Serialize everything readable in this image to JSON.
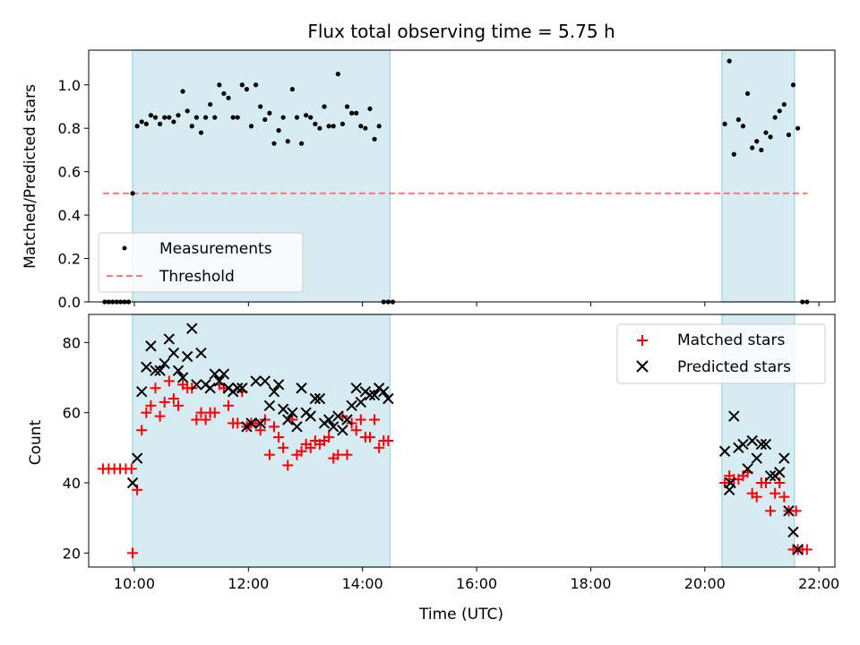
{
  "title": "Flux total observing time = 5.75 h",
  "colors": {
    "band": "#add8e6",
    "matched": "#ff0000",
    "predicted": "#000000",
    "threshold": "#ff7777"
  },
  "chart_data": [
    {
      "type": "scatter",
      "ylabel": "Matched/Predicted stars",
      "xlabel": "",
      "xlim": [
        9.2,
        22.28
      ],
      "ylim": [
        0.0,
        1.16
      ],
      "yticks": [
        0.0,
        0.2,
        0.4,
        0.6,
        0.8,
        1.0
      ],
      "ytick_labels": [
        "0.0",
        "0.2",
        "0.4",
        "0.6",
        "0.8",
        "1.0"
      ],
      "xticks": [
        10,
        12,
        14,
        16,
        18,
        20,
        22
      ],
      "xtick_labels": [],
      "shaded_intervals": [
        [
          9.97,
          14.48
        ],
        [
          20.3,
          21.57
        ]
      ],
      "threshold": {
        "name": "Threshold",
        "value": 0.5,
        "x_range": [
          9.45,
          21.8
        ],
        "style": "dashed"
      },
      "legend": {
        "position": "lower-left",
        "entries": [
          "Measurements",
          "Threshold"
        ]
      },
      "series": [
        {
          "name": "Measurements",
          "marker": "dot",
          "x": [
            9.48,
            9.55,
            9.62,
            9.69,
            9.76,
            9.83,
            9.9,
            9.97,
            10.05,
            10.13,
            10.21,
            10.29,
            10.37,
            10.45,
            10.53,
            10.61,
            10.69,
            10.77,
            10.85,
            10.93,
            11.01,
            11.09,
            11.17,
            11.25,
            11.33,
            11.41,
            11.49,
            11.57,
            11.65,
            11.73,
            11.81,
            11.89,
            11.97,
            12.05,
            12.13,
            12.21,
            12.29,
            12.37,
            12.45,
            12.53,
            12.61,
            12.69,
            12.77,
            12.85,
            12.93,
            13.01,
            13.09,
            13.17,
            13.25,
            13.33,
            13.41,
            13.49,
            13.57,
            13.65,
            13.73,
            13.81,
            13.89,
            13.97,
            14.05,
            14.13,
            14.21,
            14.29,
            14.37,
            14.45,
            14.53,
            20.35,
            20.43,
            20.51,
            20.59,
            20.67,
            20.75,
            20.83,
            20.91,
            20.99,
            21.07,
            21.15,
            21.23,
            21.31,
            21.39,
            21.47,
            21.55,
            21.63,
            21.71,
            21.79
          ],
          "y": [
            0.0,
            0.0,
            0.0,
            0.0,
            0.0,
            0.0,
            0.0,
            0.5,
            0.81,
            0.83,
            0.82,
            0.86,
            0.85,
            0.82,
            0.85,
            0.85,
            0.83,
            0.86,
            0.97,
            0.88,
            0.81,
            0.85,
            0.78,
            0.85,
            0.91,
            0.85,
            1.0,
            0.96,
            0.94,
            0.85,
            0.85,
            1.0,
            0.98,
            0.81,
            1.0,
            0.9,
            0.84,
            0.87,
            0.73,
            0.79,
            0.85,
            0.74,
            0.98,
            0.85,
            0.73,
            0.86,
            0.85,
            0.82,
            0.8,
            0.9,
            0.81,
            0.81,
            1.05,
            0.82,
            0.9,
            0.87,
            0.87,
            0.81,
            0.8,
            0.89,
            0.75,
            0.81,
            0.0,
            0.0,
            0.0,
            0.82,
            1.11,
            0.68,
            0.84,
            0.81,
            0.96,
            0.71,
            0.74,
            0.7,
            0.78,
            0.76,
            0.85,
            0.88,
            0.91,
            0.77,
            1.0,
            0.8,
            0.0,
            0.0
          ]
        }
      ]
    },
    {
      "type": "scatter",
      "ylabel": "Count",
      "xlabel": "Time (UTC)",
      "xlim": [
        9.2,
        22.28
      ],
      "ylim": [
        16,
        88
      ],
      "yticks": [
        20,
        40,
        60,
        80
      ],
      "ytick_labels": [
        "20",
        "40",
        "60",
        "80"
      ],
      "xticks": [
        10,
        12,
        14,
        16,
        18,
        20,
        22
      ],
      "xtick_labels": [
        "10:00",
        "12:00",
        "14:00",
        "16:00",
        "18:00",
        "20:00",
        "22:00"
      ],
      "shaded_intervals": [
        [
          9.97,
          14.48
        ],
        [
          20.3,
          21.57
        ]
      ],
      "legend": {
        "position": "upper-right",
        "entries": [
          "Matched stars",
          "Predicted stars"
        ]
      },
      "series": [
        {
          "name": "Matched stars",
          "marker": "plus",
          "x": [
            9.45,
            9.55,
            9.65,
            9.75,
            9.85,
            9.95,
            9.97,
            10.05,
            10.13,
            10.21,
            10.29,
            10.37,
            10.45,
            10.53,
            10.61,
            10.69,
            10.77,
            10.85,
            10.93,
            11.01,
            11.09,
            11.17,
            11.25,
            11.33,
            11.41,
            11.49,
            11.57,
            11.65,
            11.73,
            11.81,
            11.89,
            11.97,
            12.05,
            12.13,
            12.21,
            12.29,
            12.37,
            12.45,
            12.53,
            12.61,
            12.69,
            12.77,
            12.85,
            12.93,
            13.01,
            13.09,
            13.17,
            13.25,
            13.33,
            13.41,
            13.49,
            13.57,
            13.65,
            13.73,
            13.81,
            13.89,
            13.97,
            14.05,
            14.13,
            14.21,
            14.29,
            14.37,
            14.45,
            20.35,
            20.43,
            20.51,
            20.59,
            20.67,
            20.75,
            20.83,
            20.91,
            20.99,
            21.07,
            21.15,
            21.23,
            21.31,
            21.39,
            21.47,
            21.55,
            21.63,
            21.71,
            21.79
          ],
          "y": [
            44,
            44,
            44,
            44,
            44,
            44,
            20,
            38,
            55,
            60,
            62,
            67,
            59,
            63,
            69,
            64,
            62,
            68,
            67,
            67,
            58,
            60,
            58,
            60,
            60,
            68,
            67,
            62,
            57,
            57,
            66,
            56,
            57,
            57,
            55,
            58,
            48,
            56,
            53,
            50,
            45,
            58,
            48,
            49,
            51,
            50,
            52,
            51,
            52,
            53,
            47,
            48,
            59,
            48,
            57,
            55,
            58,
            53,
            53,
            58,
            50,
            52,
            52,
            40,
            42,
            41,
            41,
            42,
            43,
            37,
            36,
            40,
            40,
            32,
            37,
            40,
            36,
            32,
            21,
            21,
            21,
            21
          ],
          "extra_points": {
            "x": [
              21.6
            ],
            "y": [
              32
            ]
          }
        },
        {
          "name": "Predicted stars",
          "marker": "x",
          "x": [
            9.97,
            10.05,
            10.13,
            10.21,
            10.29,
            10.37,
            10.45,
            10.53,
            10.61,
            10.69,
            10.77,
            10.85,
            10.93,
            11.01,
            11.09,
            11.17,
            11.25,
            11.33,
            11.41,
            11.49,
            11.57,
            11.65,
            11.73,
            11.81,
            11.89,
            11.97,
            12.05,
            12.13,
            12.21,
            12.29,
            12.37,
            12.45,
            12.53,
            12.61,
            12.69,
            12.77,
            12.85,
            12.93,
            13.01,
            13.09,
            13.17,
            13.25,
            13.33,
            13.41,
            13.49,
            13.57,
            13.65,
            13.73,
            13.81,
            13.89,
            13.97,
            14.05,
            14.13,
            14.21,
            14.29,
            14.37,
            14.45,
            20.35,
            20.43,
            20.51,
            20.59,
            20.67,
            20.75,
            20.83,
            20.91,
            20.99,
            21.07,
            21.15,
            21.23,
            21.31,
            21.39,
            21.47,
            21.55,
            21.63
          ],
          "y": [
            40,
            47,
            66,
            73,
            79,
            72,
            72,
            74,
            81,
            77,
            72,
            70,
            76,
            84,
            68,
            77,
            68,
            67,
            71,
            69,
            71,
            67,
            66,
            67,
            67,
            56,
            57,
            69,
            57,
            69,
            62,
            66,
            68,
            61,
            58,
            60,
            56,
            67,
            60,
            59,
            64,
            64,
            57,
            58,
            56,
            59,
            55,
            58,
            62,
            67,
            63,
            66,
            65,
            65,
            67,
            66,
            64,
            49,
            38,
            59,
            50,
            51,
            44,
            52,
            47,
            51,
            51,
            42,
            42,
            43,
            47,
            32,
            26,
            21
          ],
          "extra_points": {
            "x": [
              20.45
            ],
            "y": [
              40
            ]
          }
        }
      ]
    }
  ]
}
